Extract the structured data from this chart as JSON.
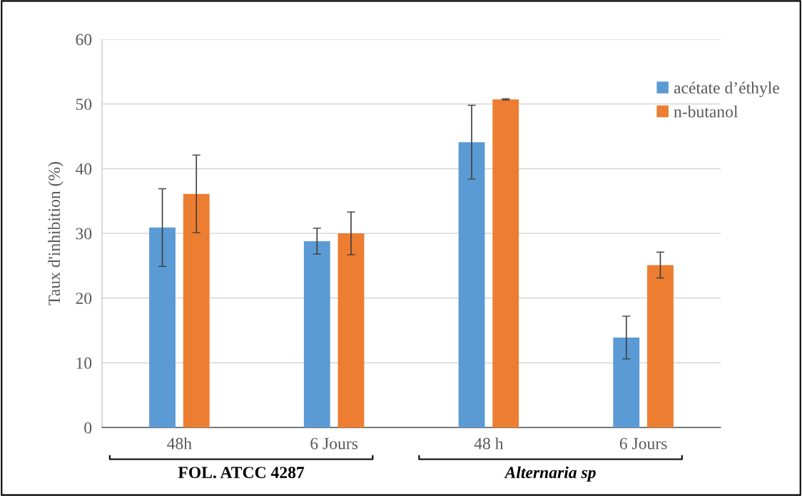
{
  "chart_data": {
    "type": "bar",
    "ylabel": "Taux d'inhibition (%)",
    "categories": [
      "48h",
      "6 Jours",
      "48 h",
      "6 Jours"
    ],
    "series": [
      {
        "name": "acétate d’éthyle",
        "color": "#5b9bd5",
        "values": [
          30.9,
          28.8,
          44.1,
          13.9
        ],
        "errors": [
          6,
          2,
          5.7,
          3.3
        ]
      },
      {
        "name": "n-butanol",
        "color": "#ed7d31",
        "values": [
          36.1,
          30.0,
          50.7,
          25.1
        ],
        "errors": [
          6,
          3.3,
          0.1,
          2
        ]
      }
    ],
    "ylim": [
      0,
      60
    ],
    "yticks": [
      0,
      10,
      20,
      30,
      40,
      50,
      60
    ],
    "grid": "y",
    "legend": "top right",
    "annotations": [
      "FOL. ATCC 4287",
      "Alternaria sp"
    ]
  }
}
